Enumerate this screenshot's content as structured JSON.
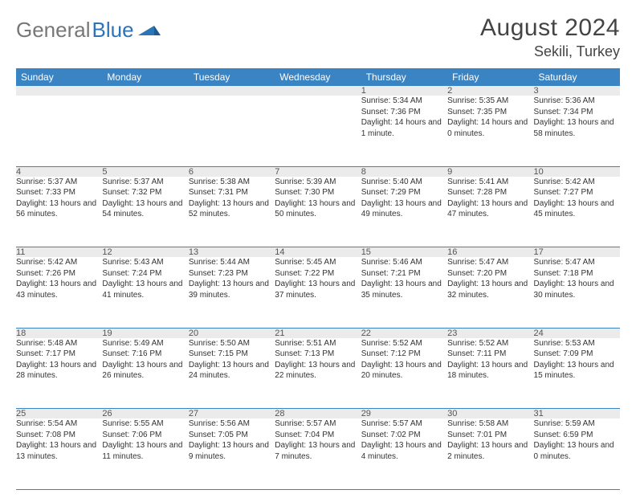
{
  "logo": {
    "text1": "General",
    "text2": "Blue"
  },
  "title": "August 2024",
  "location": "Sekili, Turkey",
  "day_headers": [
    "Sunday",
    "Monday",
    "Tuesday",
    "Wednesday",
    "Thursday",
    "Friday",
    "Saturday"
  ],
  "colors": {
    "header_bg": "#3b84c4",
    "daynum_bg": "#ebebeb",
    "row_border": "#3b84c4"
  },
  "weeks": [
    [
      null,
      null,
      null,
      null,
      {
        "n": "1",
        "sr": "Sunrise: 5:34 AM",
        "ss": "Sunset: 7:36 PM",
        "dl": "Daylight: 14 hours and 1 minute."
      },
      {
        "n": "2",
        "sr": "Sunrise: 5:35 AM",
        "ss": "Sunset: 7:35 PM",
        "dl": "Daylight: 14 hours and 0 minutes."
      },
      {
        "n": "3",
        "sr": "Sunrise: 5:36 AM",
        "ss": "Sunset: 7:34 PM",
        "dl": "Daylight: 13 hours and 58 minutes."
      }
    ],
    [
      {
        "n": "4",
        "sr": "Sunrise: 5:37 AM",
        "ss": "Sunset: 7:33 PM",
        "dl": "Daylight: 13 hours and 56 minutes."
      },
      {
        "n": "5",
        "sr": "Sunrise: 5:37 AM",
        "ss": "Sunset: 7:32 PM",
        "dl": "Daylight: 13 hours and 54 minutes."
      },
      {
        "n": "6",
        "sr": "Sunrise: 5:38 AM",
        "ss": "Sunset: 7:31 PM",
        "dl": "Daylight: 13 hours and 52 minutes."
      },
      {
        "n": "7",
        "sr": "Sunrise: 5:39 AM",
        "ss": "Sunset: 7:30 PM",
        "dl": "Daylight: 13 hours and 50 minutes."
      },
      {
        "n": "8",
        "sr": "Sunrise: 5:40 AM",
        "ss": "Sunset: 7:29 PM",
        "dl": "Daylight: 13 hours and 49 minutes."
      },
      {
        "n": "9",
        "sr": "Sunrise: 5:41 AM",
        "ss": "Sunset: 7:28 PM",
        "dl": "Daylight: 13 hours and 47 minutes."
      },
      {
        "n": "10",
        "sr": "Sunrise: 5:42 AM",
        "ss": "Sunset: 7:27 PM",
        "dl": "Daylight: 13 hours and 45 minutes."
      }
    ],
    [
      {
        "n": "11",
        "sr": "Sunrise: 5:42 AM",
        "ss": "Sunset: 7:26 PM",
        "dl": "Daylight: 13 hours and 43 minutes."
      },
      {
        "n": "12",
        "sr": "Sunrise: 5:43 AM",
        "ss": "Sunset: 7:24 PM",
        "dl": "Daylight: 13 hours and 41 minutes."
      },
      {
        "n": "13",
        "sr": "Sunrise: 5:44 AM",
        "ss": "Sunset: 7:23 PM",
        "dl": "Daylight: 13 hours and 39 minutes."
      },
      {
        "n": "14",
        "sr": "Sunrise: 5:45 AM",
        "ss": "Sunset: 7:22 PM",
        "dl": "Daylight: 13 hours and 37 minutes."
      },
      {
        "n": "15",
        "sr": "Sunrise: 5:46 AM",
        "ss": "Sunset: 7:21 PM",
        "dl": "Daylight: 13 hours and 35 minutes."
      },
      {
        "n": "16",
        "sr": "Sunrise: 5:47 AM",
        "ss": "Sunset: 7:20 PM",
        "dl": "Daylight: 13 hours and 32 minutes."
      },
      {
        "n": "17",
        "sr": "Sunrise: 5:47 AM",
        "ss": "Sunset: 7:18 PM",
        "dl": "Daylight: 13 hours and 30 minutes."
      }
    ],
    [
      {
        "n": "18",
        "sr": "Sunrise: 5:48 AM",
        "ss": "Sunset: 7:17 PM",
        "dl": "Daylight: 13 hours and 28 minutes."
      },
      {
        "n": "19",
        "sr": "Sunrise: 5:49 AM",
        "ss": "Sunset: 7:16 PM",
        "dl": "Daylight: 13 hours and 26 minutes."
      },
      {
        "n": "20",
        "sr": "Sunrise: 5:50 AM",
        "ss": "Sunset: 7:15 PM",
        "dl": "Daylight: 13 hours and 24 minutes."
      },
      {
        "n": "21",
        "sr": "Sunrise: 5:51 AM",
        "ss": "Sunset: 7:13 PM",
        "dl": "Daylight: 13 hours and 22 minutes."
      },
      {
        "n": "22",
        "sr": "Sunrise: 5:52 AM",
        "ss": "Sunset: 7:12 PM",
        "dl": "Daylight: 13 hours and 20 minutes."
      },
      {
        "n": "23",
        "sr": "Sunrise: 5:52 AM",
        "ss": "Sunset: 7:11 PM",
        "dl": "Daylight: 13 hours and 18 minutes."
      },
      {
        "n": "24",
        "sr": "Sunrise: 5:53 AM",
        "ss": "Sunset: 7:09 PM",
        "dl": "Daylight: 13 hours and 15 minutes."
      }
    ],
    [
      {
        "n": "25",
        "sr": "Sunrise: 5:54 AM",
        "ss": "Sunset: 7:08 PM",
        "dl": "Daylight: 13 hours and 13 minutes."
      },
      {
        "n": "26",
        "sr": "Sunrise: 5:55 AM",
        "ss": "Sunset: 7:06 PM",
        "dl": "Daylight: 13 hours and 11 minutes."
      },
      {
        "n": "27",
        "sr": "Sunrise: 5:56 AM",
        "ss": "Sunset: 7:05 PM",
        "dl": "Daylight: 13 hours and 9 minutes."
      },
      {
        "n": "28",
        "sr": "Sunrise: 5:57 AM",
        "ss": "Sunset: 7:04 PM",
        "dl": "Daylight: 13 hours and 7 minutes."
      },
      {
        "n": "29",
        "sr": "Sunrise: 5:57 AM",
        "ss": "Sunset: 7:02 PM",
        "dl": "Daylight: 13 hours and 4 minutes."
      },
      {
        "n": "30",
        "sr": "Sunrise: 5:58 AM",
        "ss": "Sunset: 7:01 PM",
        "dl": "Daylight: 13 hours and 2 minutes."
      },
      {
        "n": "31",
        "sr": "Sunrise: 5:59 AM",
        "ss": "Sunset: 6:59 PM",
        "dl": "Daylight: 13 hours and 0 minutes."
      }
    ]
  ]
}
